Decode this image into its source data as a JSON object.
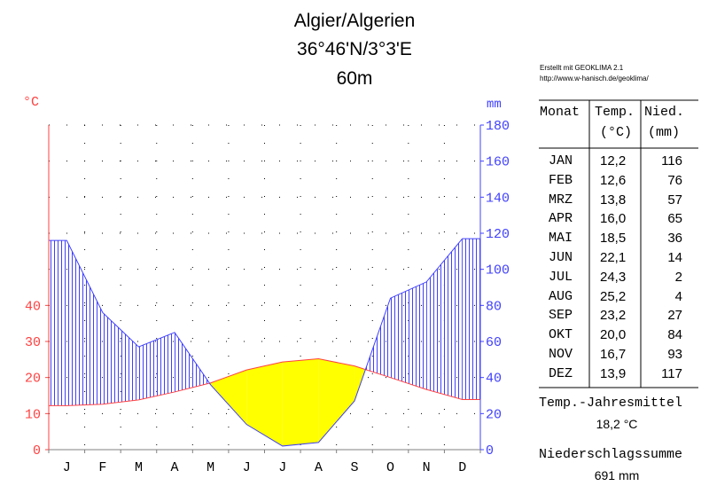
{
  "header": {
    "station": "Algier/Algerien",
    "coords": "36°46'N/3°3'E",
    "elevation": "60m",
    "credit_line1": "Erstellt mit GEOKLIMA 2.1",
    "credit_line2": "http://www.w-hanisch.de/geoklima/"
  },
  "colors": {
    "temperature": "#ff4040",
    "precipitation": "#4040ff",
    "dry_season": "#ffff00",
    "humid_hatch": "#4040ff"
  },
  "chart_data": {
    "type": "line",
    "title": "Algier/Algerien",
    "categories": [
      "J",
      "F",
      "M",
      "A",
      "M",
      "J",
      "J",
      "A",
      "S",
      "O",
      "N",
      "D"
    ],
    "temp_unit": "°C",
    "precip_unit": "mm",
    "temp_axis": {
      "ylim": [
        0,
        90
      ],
      "ticks": [
        0,
        10,
        20,
        30,
        40
      ]
    },
    "precip_axis": {
      "ylim": [
        0,
        180
      ],
      "ticks": [
        0,
        20,
        40,
        60,
        80,
        100,
        120,
        140,
        160,
        180
      ]
    },
    "series": [
      {
        "name": "Temp.",
        "unit": "°C",
        "values": [
          12.2,
          12.6,
          13.8,
          16.0,
          18.5,
          22.1,
          24.3,
          25.2,
          23.2,
          20.0,
          16.7,
          13.9
        ]
      },
      {
        "name": "Nied.",
        "unit": "mm",
        "values": [
          116,
          76,
          57,
          65,
          36,
          14,
          2,
          4,
          27,
          84,
          93,
          117
        ]
      }
    ],
    "grid": true
  },
  "table": {
    "headers": {
      "month": "Monat",
      "temp": "Temp.",
      "temp_unit": "(°C)",
      "precip": "Nied.",
      "precip_unit": "(mm)"
    },
    "rows": [
      {
        "month": "JAN",
        "temp": "12,2",
        "precip": "116"
      },
      {
        "month": "FEB",
        "temp": "12,6",
        "precip": "76"
      },
      {
        "month": "MRZ",
        "temp": "13,8",
        "precip": "57"
      },
      {
        "month": "APR",
        "temp": "16,0",
        "precip": "65"
      },
      {
        "month": "MAI",
        "temp": "18,5",
        "precip": "36"
      },
      {
        "month": "JUN",
        "temp": "22,1",
        "precip": "14"
      },
      {
        "month": "JUL",
        "temp": "24,3",
        "precip": "2"
      },
      {
        "month": "AUG",
        "temp": "25,2",
        "precip": "4"
      },
      {
        "month": "SEP",
        "temp": "23,2",
        "precip": "27"
      },
      {
        "month": "OKT",
        "temp": "20,0",
        "precip": "84"
      },
      {
        "month": "NOV",
        "temp": "16,7",
        "precip": "93"
      },
      {
        "month": "DEZ",
        "temp": "13,9",
        "precip": "117"
      }
    ]
  },
  "summary": {
    "temp_mean_label": "Temp.-Jahresmittel",
    "temp_mean_value": "18,2 °C",
    "precip_sum_label": "Niederschlagssumme",
    "precip_sum_value": "691 mm"
  }
}
